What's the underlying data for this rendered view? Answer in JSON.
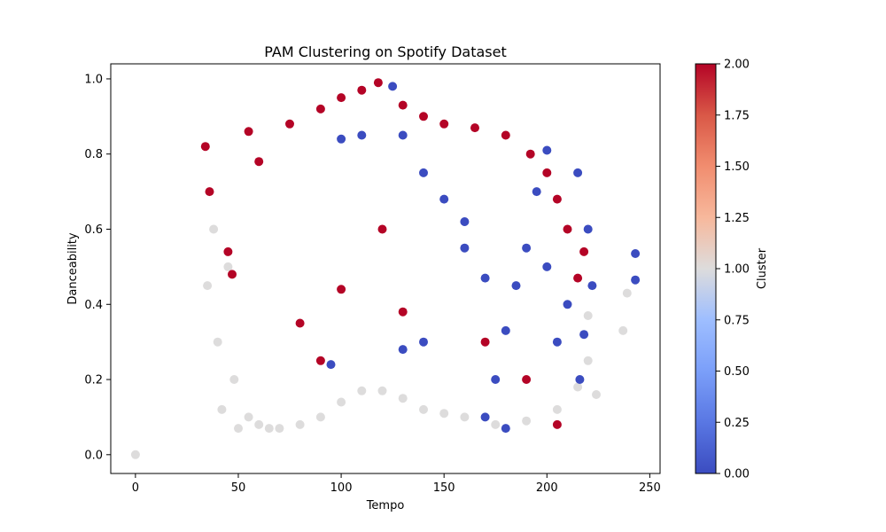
{
  "chart_data": {
    "type": "scatter",
    "title": "PAM Clustering on Spotify Dataset",
    "xlabel": "Tempo",
    "ylabel": "Danceability",
    "xlim": [
      -12,
      255
    ],
    "ylim": [
      -0.05,
      1.04
    ],
    "xticks": [
      0,
      50,
      100,
      150,
      200,
      250
    ],
    "yticks": [
      0.0,
      0.2,
      0.4,
      0.6,
      0.8,
      1.0
    ],
    "grid": false,
    "colormap": "coolwarm",
    "colorbar": {
      "label": "Cluster",
      "range": [
        0,
        2
      ],
      "ticks": [
        "0.00",
        "0.25",
        "0.50",
        "0.75",
        "1.00",
        "1.25",
        "1.50",
        "1.75",
        "2.00"
      ]
    },
    "cluster_colors": {
      "0": "#3b4cc0",
      "1": "#dddcdc",
      "2": "#b40426"
    },
    "series": [
      {
        "cluster": 1,
        "points": [
          [
            0,
            0.0
          ],
          [
            35,
            0.45
          ],
          [
            38,
            0.6
          ],
          [
            40,
            0.3
          ],
          [
            42,
            0.12
          ],
          [
            45,
            0.5
          ],
          [
            48,
            0.2
          ],
          [
            50,
            0.07
          ],
          [
            55,
            0.1
          ],
          [
            60,
            0.08
          ],
          [
            65,
            0.07
          ],
          [
            70,
            0.07
          ],
          [
            80,
            0.08
          ],
          [
            90,
            0.1
          ],
          [
            100,
            0.14
          ],
          [
            110,
            0.17
          ],
          [
            120,
            0.17
          ],
          [
            130,
            0.15
          ],
          [
            140,
            0.12
          ],
          [
            150,
            0.11
          ],
          [
            160,
            0.1
          ],
          [
            175,
            0.08
          ],
          [
            190,
            0.09
          ],
          [
            205,
            0.12
          ],
          [
            215,
            0.18
          ],
          [
            220,
            0.25
          ],
          [
            224,
            0.16
          ],
          [
            237,
            0.33
          ],
          [
            239,
            0.43
          ],
          [
            220,
            0.37
          ]
        ]
      },
      {
        "cluster": 2,
        "points": [
          [
            34,
            0.82
          ],
          [
            36,
            0.7
          ],
          [
            45,
            0.54
          ],
          [
            47,
            0.48
          ],
          [
            55,
            0.86
          ],
          [
            60,
            0.78
          ],
          [
            75,
            0.88
          ],
          [
            90,
            0.92
          ],
          [
            100,
            0.95
          ],
          [
            110,
            0.97
          ],
          [
            118,
            0.99
          ],
          [
            130,
            0.93
          ],
          [
            140,
            0.9
          ],
          [
            150,
            0.88
          ],
          [
            165,
            0.87
          ],
          [
            180,
            0.85
          ],
          [
            192,
            0.8
          ],
          [
            200,
            0.75
          ],
          [
            205,
            0.68
          ],
          [
            210,
            0.6
          ],
          [
            215,
            0.47
          ],
          [
            218,
            0.54
          ],
          [
            205,
            0.08
          ],
          [
            190,
            0.2
          ],
          [
            170,
            0.3
          ],
          [
            130,
            0.38
          ],
          [
            100,
            0.44
          ],
          [
            90,
            0.25
          ],
          [
            80,
            0.35
          ],
          [
            120,
            0.6
          ]
        ]
      },
      {
        "cluster": 0,
        "points": [
          [
            243,
            0.535
          ],
          [
            243,
            0.465
          ],
          [
            215,
            0.75
          ],
          [
            220,
            0.6
          ],
          [
            222,
            0.45
          ],
          [
            218,
            0.32
          ],
          [
            216,
            0.2
          ],
          [
            210,
            0.4
          ],
          [
            200,
            0.81
          ],
          [
            195,
            0.7
          ],
          [
            190,
            0.55
          ],
          [
            185,
            0.45
          ],
          [
            180,
            0.33
          ],
          [
            175,
            0.2
          ],
          [
            170,
            0.1
          ],
          [
            180,
            0.07
          ],
          [
            160,
            0.62
          ],
          [
            150,
            0.68
          ],
          [
            140,
            0.75
          ],
          [
            130,
            0.85
          ],
          [
            125,
            0.98
          ],
          [
            110,
            0.85
          ],
          [
            100,
            0.84
          ],
          [
            140,
            0.3
          ],
          [
            130,
            0.28
          ],
          [
            95,
            0.24
          ],
          [
            160,
            0.55
          ],
          [
            170,
            0.47
          ],
          [
            200,
            0.5
          ],
          [
            205,
            0.3
          ]
        ]
      }
    ]
  }
}
